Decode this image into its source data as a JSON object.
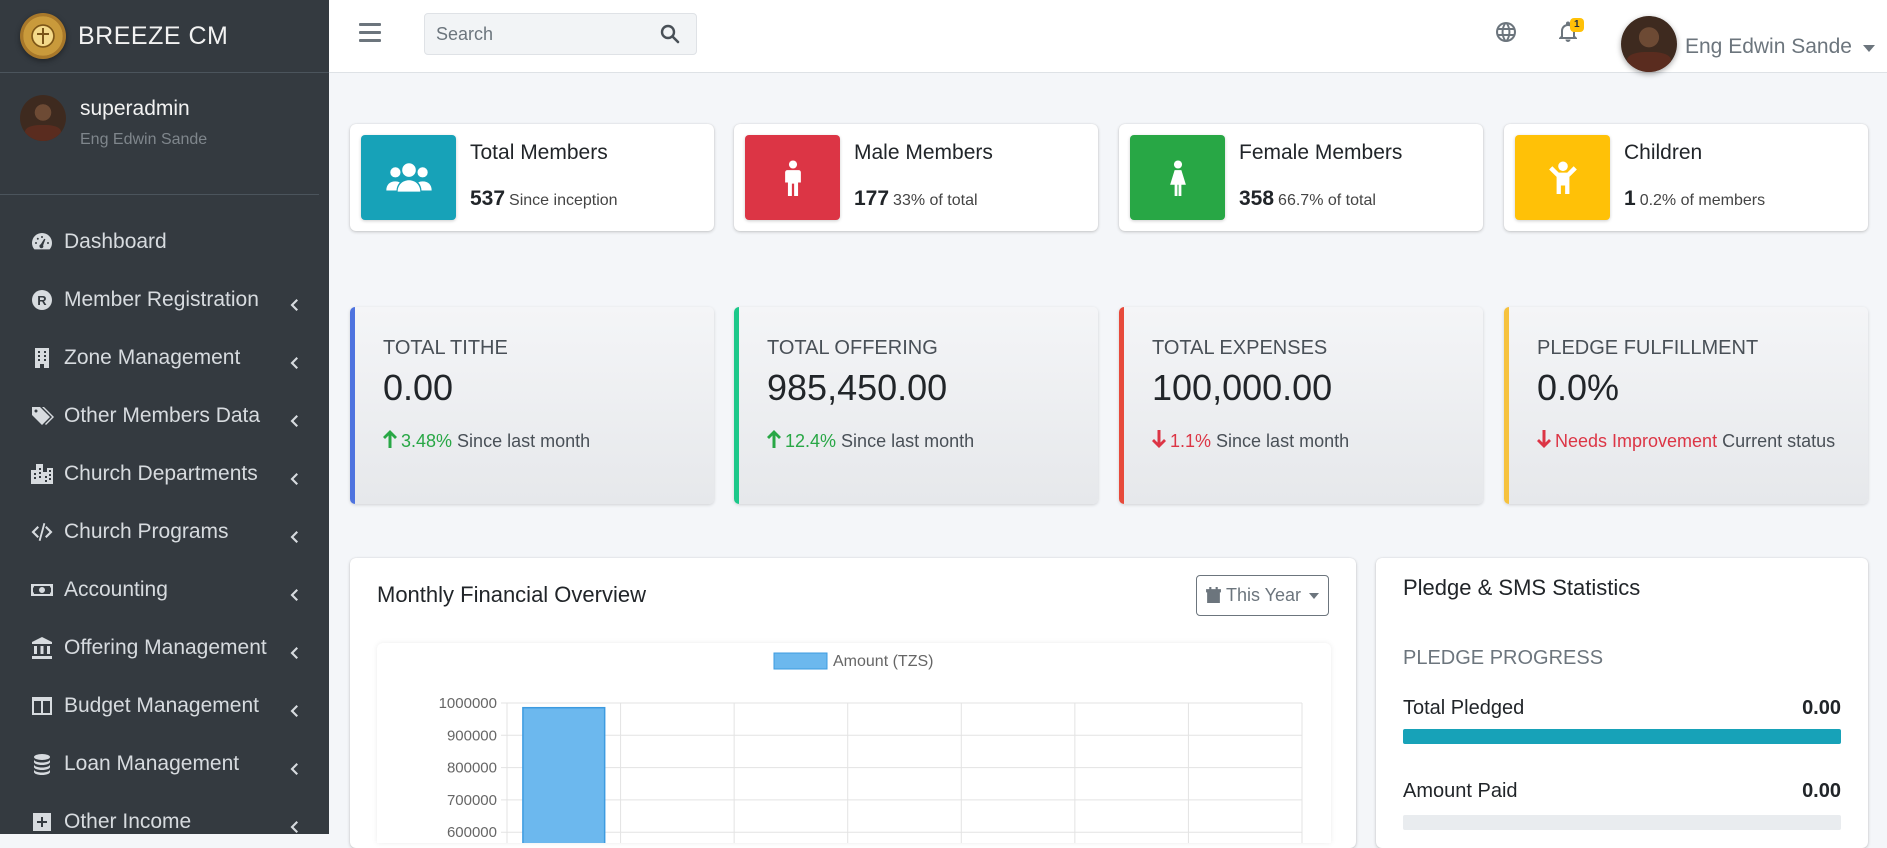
{
  "brand": {
    "name": "BREEZE CM"
  },
  "user": {
    "username": "superadmin",
    "full_name": "Eng Edwin Sande"
  },
  "sidebar": {
    "items": [
      {
        "label": "Dashboard",
        "icon": "tachometer-icon",
        "has_submenu": false
      },
      {
        "label": "Member Registration",
        "icon": "registered-icon",
        "has_submenu": true
      },
      {
        "label": "Zone Management",
        "icon": "building-icon",
        "has_submenu": true
      },
      {
        "label": "Other Members Data",
        "icon": "tags-icon",
        "has_submenu": true
      },
      {
        "label": "Church Departments",
        "icon": "city-icon",
        "has_submenu": true
      },
      {
        "label": "Church Programs",
        "icon": "code-icon",
        "has_submenu": true
      },
      {
        "label": "Accounting",
        "icon": "money-bill-icon",
        "has_submenu": true
      },
      {
        "label": "Offering Management",
        "icon": "bank-icon",
        "has_submenu": true
      },
      {
        "label": "Budget Management",
        "icon": "columns-icon",
        "has_submenu": true
      },
      {
        "label": "Loan Management",
        "icon": "coins-icon",
        "has_submenu": true
      },
      {
        "label": "Other Income",
        "icon": "plus-square-icon",
        "has_submenu": true
      }
    ]
  },
  "header": {
    "search_placeholder": "Search",
    "notification_count": "1",
    "user_name": "Eng Edwin Sande"
  },
  "info_boxes": [
    {
      "title": "Total Members",
      "number": "537",
      "desc": "Since inception",
      "color": "#17a2b8",
      "icon": "users-icon"
    },
    {
      "title": "Male Members",
      "number": "177",
      "desc": "33% of total",
      "color": "#dc3545",
      "icon": "male-icon"
    },
    {
      "title": "Female Members",
      "number": "358",
      "desc": "66.7% of total",
      "color": "#28a745",
      "icon": "female-icon"
    },
    {
      "title": "Children",
      "number": "1",
      "desc": "0.2% of members",
      "color": "#ffc107",
      "icon": "child-icon"
    }
  ],
  "stats": [
    {
      "label": "TOTAL TITHE",
      "value": "0.00",
      "change": "3.48%",
      "note": "Since last month",
      "trend": "up",
      "color": "#4e73df"
    },
    {
      "label": "TOTAL OFFERING",
      "value": "985,450.00",
      "change": "12.4%",
      "note": "Since last month",
      "trend": "up",
      "color": "#1cc88a"
    },
    {
      "label": "TOTAL EXPENSES",
      "value": "100,000.00",
      "change": "1.1%",
      "note": "Since last month",
      "trend": "down",
      "color": "#e74a3b"
    },
    {
      "label": "PLEDGE FULFILLMENT",
      "value": "0.0%",
      "change": "Needs Improvement",
      "note": "Current status",
      "trend": "down",
      "color": "#f6c23e"
    }
  ],
  "financial": {
    "title": "Monthly Financial Overview",
    "period_label": "This Year"
  },
  "pledge": {
    "title": "Pledge & SMS Statistics",
    "subtitle": "PLEDGE PROGRESS",
    "rows": [
      {
        "label": "Total Pledged",
        "value": "0.00",
        "fill": 1.0
      },
      {
        "label": "Amount Paid",
        "value": "0.00",
        "fill": 0.0
      }
    ]
  },
  "chart_data": {
    "type": "bar",
    "title": "Monthly Financial Overview",
    "legend": [
      "Amount (TZS)"
    ],
    "categories": [
      "",
      "",
      "",
      "",
      "",
      "",
      ""
    ],
    "series": [
      {
        "name": "Amount (TZS)",
        "values": [
          985450,
          0,
          0,
          0,
          0,
          0,
          0
        ]
      }
    ],
    "y_ticks": [
      "1000000",
      "900000",
      "800000",
      "700000",
      "600000"
    ],
    "ylim": [
      0,
      1000000
    ],
    "colors": {
      "bar": "#6cb8ee",
      "bar_border": "#3d9be0"
    }
  }
}
